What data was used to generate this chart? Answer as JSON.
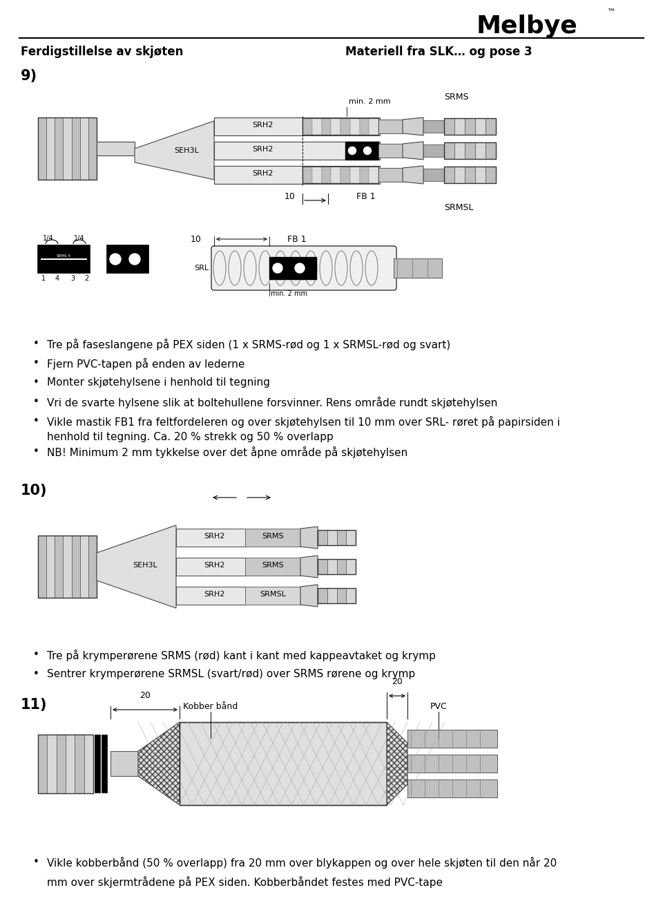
{
  "bg_color": "#ffffff",
  "header_left": "Ferdigstillelse av skjøten",
  "header_right": "Materiell fra SLK… og pose 3",
  "logo_text": "Melbye",
  "section9_label": "9)",
  "section10_label": "10)",
  "section11_label": "11)",
  "bullet9": [
    "Tre på faseslangene på PEX siden (1 x SRMS-rød og 1 x SRMSL-rød og svart)",
    "Fjern PVC-tapen på enden av lederne",
    "Monter skjøtehylsene i henhold til tegning",
    "Vri de svarte hylsene slik at boltehullene forsvinner. Rens område rundt skjøtehylsen",
    "Vikle mastik FB1 fra feltfordeleren og over skjøtehylsen til 10 mm over SRL- røret på papirsiden i henhold til tegning. Ca. 20 % strekk og 50 % overlapp",
    "NB! Minimum 2 mm tykkelse over det åpne område på skjøtehylsen"
  ],
  "bullet10": [
    "Tre på krymperørene SRMS (rød) kant i kant med kappeavtaket og krymp",
    "Sentrer krymperørene SRMSL (svart/rød) over SRMS rørene og krymp"
  ],
  "bullet11": [
    "Vikle kobberbånd (50 % overlapp) fra 20 mm over blykappen og over hele skjøten til den når 20 mm over skjermtrådene på PEX siden. Kobberbåndet festes med PVC-tape"
  ],
  "font_size_header": 12,
  "font_size_body": 11,
  "font_size_section": 15,
  "font_size_logo": 26,
  "font_size_diag": 8
}
